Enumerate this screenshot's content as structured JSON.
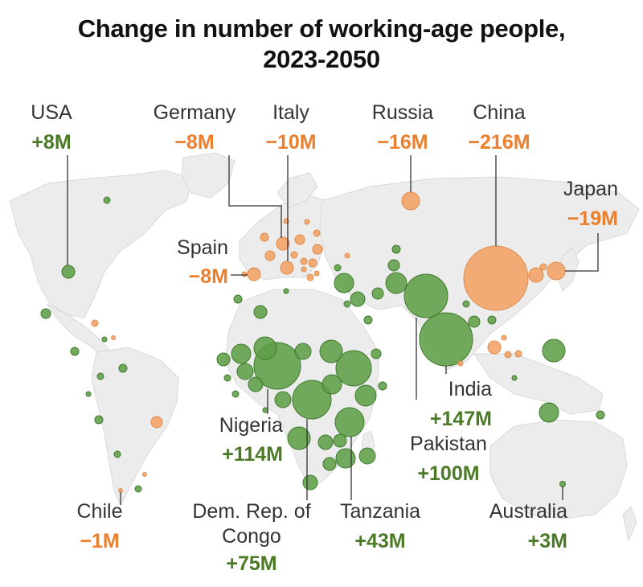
{
  "title": {
    "line1": "Change in number of working-age people,",
    "line2": "2023-2050"
  },
  "colors": {
    "increase": "#5e9e48",
    "decrease": "#f4a265",
    "increase_text": "#4a7a26",
    "decrease_text": "#ea7f2e",
    "land": "#ececec",
    "border": "#d9d9d9"
  },
  "labels": [
    {
      "id": "usa",
      "name": [
        "USA"
      ],
      "value": "+8M",
      "change": "increase"
    },
    {
      "id": "germany",
      "name": [
        "Germany"
      ],
      "value": "−8M",
      "change": "decrease"
    },
    {
      "id": "italy",
      "name": [
        "Italy"
      ],
      "value": "−10M",
      "change": "decrease"
    },
    {
      "id": "russia",
      "name": [
        "Russia"
      ],
      "value": "−16M",
      "change": "decrease"
    },
    {
      "id": "china",
      "name": [
        "China"
      ],
      "value": "−216M",
      "change": "decrease"
    },
    {
      "id": "japan",
      "name": [
        "Japan"
      ],
      "value": "−19M",
      "change": "decrease"
    },
    {
      "id": "spain",
      "name": [
        "Spain"
      ],
      "value": "−8M",
      "change": "decrease"
    },
    {
      "id": "nigeria",
      "name": [
        "Nigeria"
      ],
      "value": "+114M",
      "change": "increase"
    },
    {
      "id": "india",
      "name": [
        "India"
      ],
      "value": "+147M",
      "change": "increase"
    },
    {
      "id": "pakistan",
      "name": [
        "Pakistan"
      ],
      "value": "+100M",
      "change": "increase"
    },
    {
      "id": "chile",
      "name": [
        "Chile"
      ],
      "value": "−1M",
      "change": "decrease"
    },
    {
      "id": "drc",
      "name": [
        "Dem. Rep. of",
        "Congo"
      ],
      "value": "+75M",
      "change": "increase"
    },
    {
      "id": "tanzania",
      "name": [
        "Tanzania"
      ],
      "value": "+43M",
      "change": "increase"
    },
    {
      "id": "australia",
      "name": [
        "Australia"
      ],
      "value": "+3M",
      "change": "increase"
    }
  ]
}
